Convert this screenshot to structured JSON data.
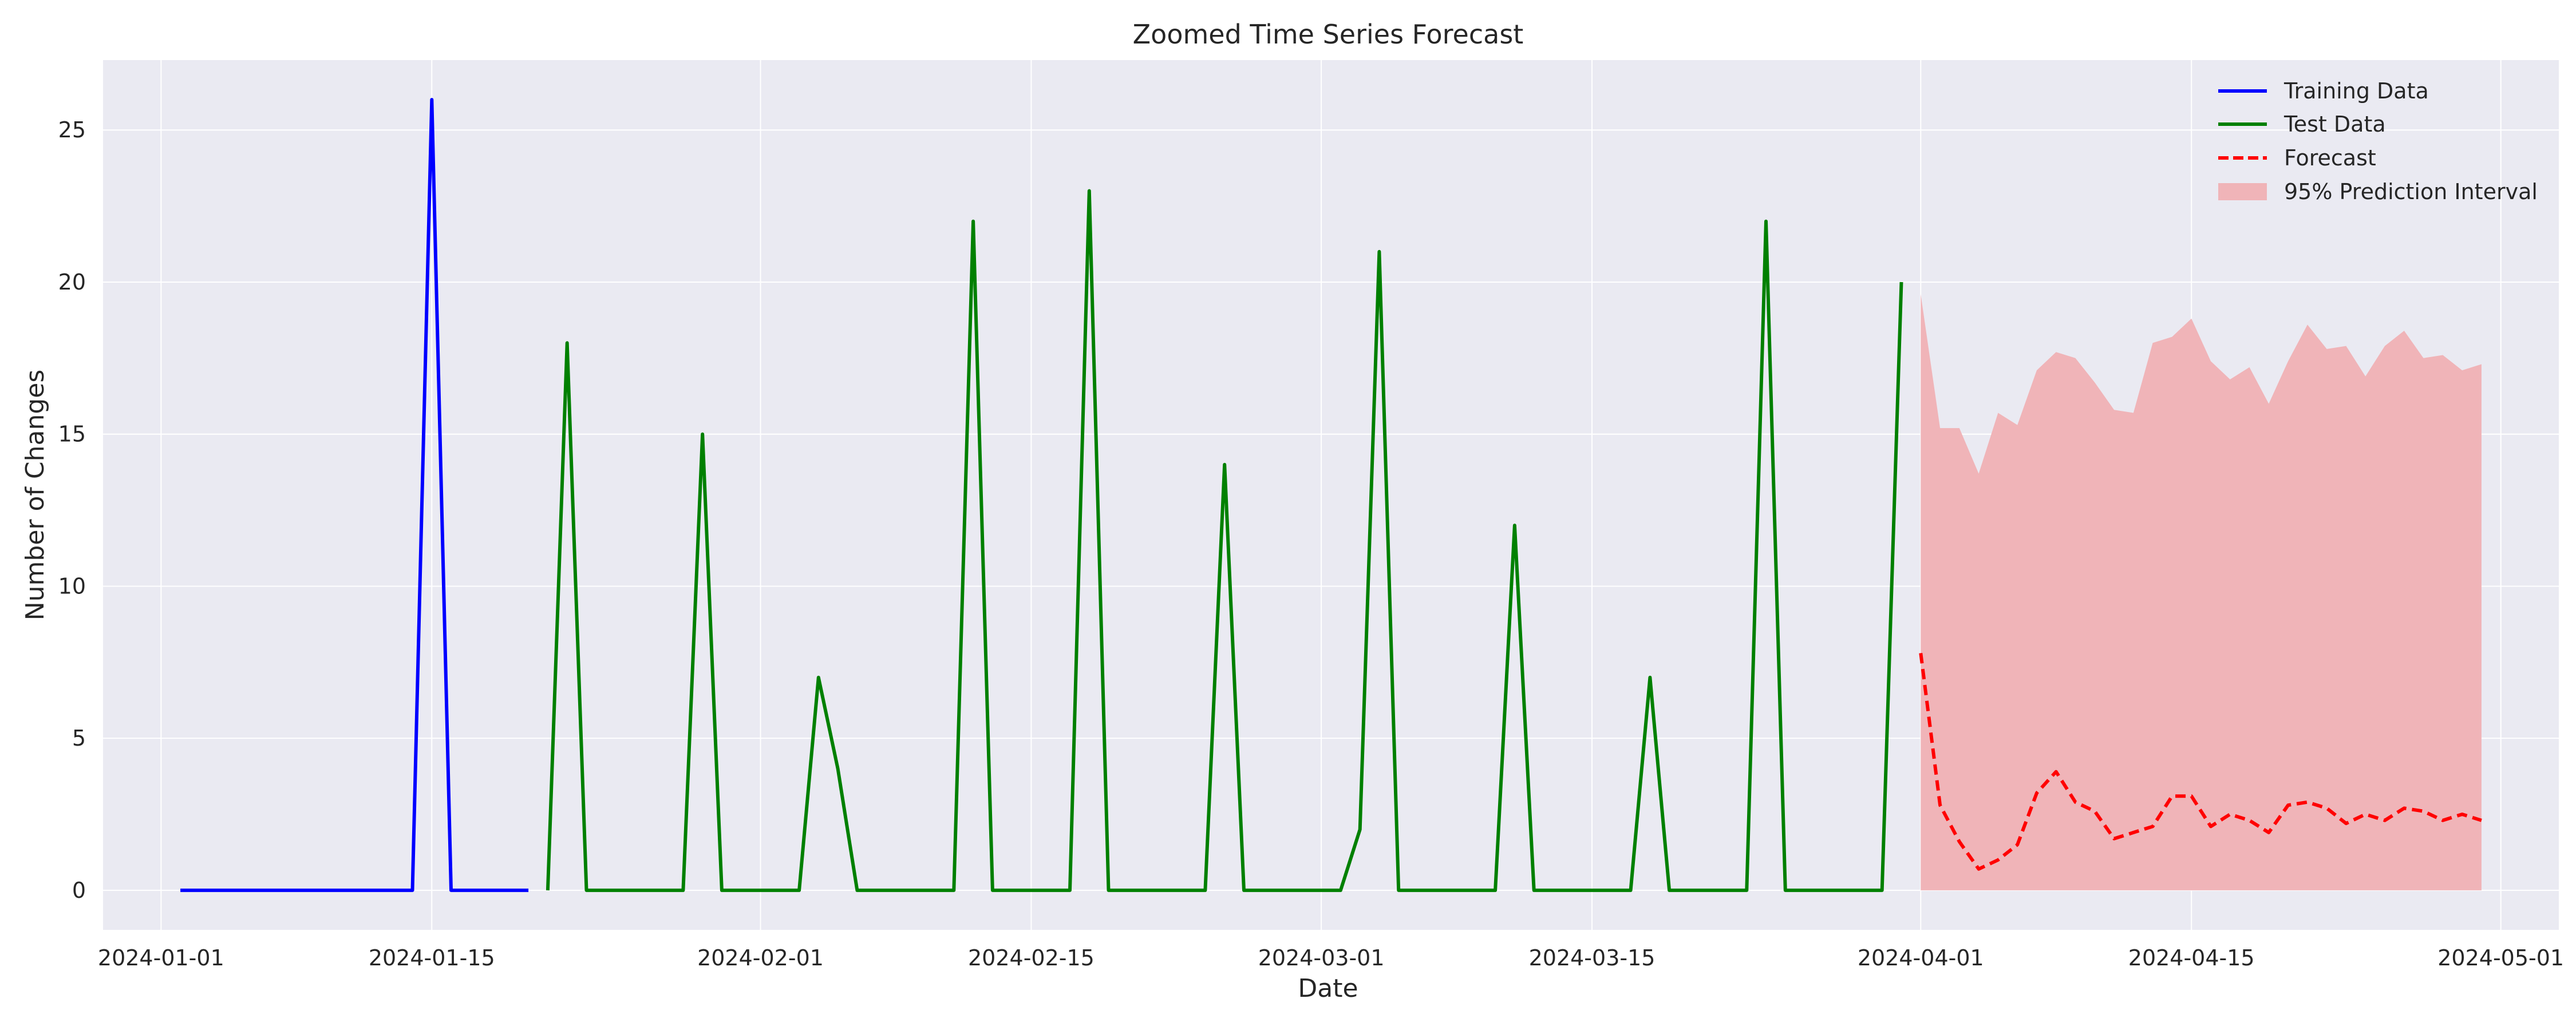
{
  "chart_data": {
    "type": "line",
    "title": "Zoomed Time Series Forecast",
    "xlabel": "Date",
    "ylabel": "Number of Changes",
    "xlim": [
      "2023-12-29",
      "2024-05-04"
    ],
    "ylim": [
      -1.3,
      27.3
    ],
    "x_ticks": [
      "2024-01-01",
      "2024-01-15",
      "2024-02-01",
      "2024-02-15",
      "2024-03-01",
      "2024-03-15",
      "2024-04-01",
      "2024-04-15",
      "2024-05-01"
    ],
    "y_ticks": [
      0,
      5,
      10,
      15,
      20,
      25
    ],
    "grid": true,
    "legend_position": "top-right",
    "colors": {
      "background": "#eaeaf2",
      "grid": "#ffffff",
      "training": "#0000ff",
      "test": "#008000",
      "forecast": "#ff0000",
      "interval": "#f0b4b8"
    },
    "legend": [
      {
        "label": "Training Data",
        "style": "line",
        "color": "#0000ff"
      },
      {
        "label": "Test Data",
        "style": "line",
        "color": "#008000"
      },
      {
        "label": "Forecast",
        "style": "dashed",
        "color": "#ff0000"
      },
      {
        "label": "95% Prediction Interval",
        "style": "patch",
        "color": "#f0b4b8"
      }
    ],
    "series": [
      {
        "name": "Training Data",
        "style": "solid",
        "color": "#0000ff",
        "points": [
          [
            "2024-01-02",
            0
          ],
          [
            "2024-01-03",
            0
          ],
          [
            "2024-01-04",
            0
          ],
          [
            "2024-01-05",
            0
          ],
          [
            "2024-01-06",
            0
          ],
          [
            "2024-01-07",
            0
          ],
          [
            "2024-01-08",
            0
          ],
          [
            "2024-01-09",
            0
          ],
          [
            "2024-01-10",
            0
          ],
          [
            "2024-01-11",
            0
          ],
          [
            "2024-01-12",
            0
          ],
          [
            "2024-01-13",
            0
          ],
          [
            "2024-01-14",
            0
          ],
          [
            "2024-01-15",
            26
          ],
          [
            "2024-01-16",
            0
          ],
          [
            "2024-01-17",
            0
          ],
          [
            "2024-01-18",
            0
          ],
          [
            "2024-01-19",
            0
          ],
          [
            "2024-01-20",
            0
          ]
        ]
      },
      {
        "name": "Test Data",
        "style": "solid",
        "color": "#008000",
        "points": [
          [
            "2024-01-21",
            0
          ],
          [
            "2024-01-22",
            18
          ],
          [
            "2024-01-23",
            0
          ],
          [
            "2024-01-24",
            0
          ],
          [
            "2024-01-25",
            0
          ],
          [
            "2024-01-26",
            0
          ],
          [
            "2024-01-27",
            0
          ],
          [
            "2024-01-28",
            0
          ],
          [
            "2024-01-29",
            15
          ],
          [
            "2024-01-30",
            0
          ],
          [
            "2024-01-31",
            0
          ],
          [
            "2024-02-01",
            0
          ],
          [
            "2024-02-02",
            0
          ],
          [
            "2024-02-03",
            0
          ],
          [
            "2024-02-04",
            7
          ],
          [
            "2024-02-05",
            4
          ],
          [
            "2024-02-06",
            0
          ],
          [
            "2024-02-07",
            0
          ],
          [
            "2024-02-08",
            0
          ],
          [
            "2024-02-09",
            0
          ],
          [
            "2024-02-10",
            0
          ],
          [
            "2024-02-11",
            0
          ],
          [
            "2024-02-12",
            22
          ],
          [
            "2024-02-13",
            0
          ],
          [
            "2024-02-14",
            0
          ],
          [
            "2024-02-15",
            0
          ],
          [
            "2024-02-16",
            0
          ],
          [
            "2024-02-17",
            0
          ],
          [
            "2024-02-18",
            23
          ],
          [
            "2024-02-19",
            0
          ],
          [
            "2024-02-20",
            0
          ],
          [
            "2024-02-21",
            0
          ],
          [
            "2024-02-22",
            0
          ],
          [
            "2024-02-23",
            0
          ],
          [
            "2024-02-24",
            0
          ],
          [
            "2024-02-25",
            14
          ],
          [
            "2024-02-26",
            0
          ],
          [
            "2024-02-27",
            0
          ],
          [
            "2024-02-28",
            0
          ],
          [
            "2024-02-29",
            0
          ],
          [
            "2024-03-01",
            0
          ],
          [
            "2024-03-02",
            0
          ],
          [
            "2024-03-03",
            2
          ],
          [
            "2024-03-04",
            21
          ],
          [
            "2024-03-05",
            0
          ],
          [
            "2024-03-06",
            0
          ],
          [
            "2024-03-07",
            0
          ],
          [
            "2024-03-08",
            0
          ],
          [
            "2024-03-09",
            0
          ],
          [
            "2024-03-10",
            0
          ],
          [
            "2024-03-11",
            12
          ],
          [
            "2024-03-12",
            0
          ],
          [
            "2024-03-13",
            0
          ],
          [
            "2024-03-14",
            0
          ],
          [
            "2024-03-15",
            0
          ],
          [
            "2024-03-16",
            0
          ],
          [
            "2024-03-17",
            0
          ],
          [
            "2024-03-18",
            7
          ],
          [
            "2024-03-19",
            0
          ],
          [
            "2024-03-20",
            0
          ],
          [
            "2024-03-21",
            0
          ],
          [
            "2024-03-22",
            0
          ],
          [
            "2024-03-23",
            0
          ],
          [
            "2024-03-24",
            22
          ],
          [
            "2024-03-25",
            0
          ],
          [
            "2024-03-26",
            0
          ],
          [
            "2024-03-27",
            0
          ],
          [
            "2024-03-28",
            0
          ],
          [
            "2024-03-29",
            0
          ],
          [
            "2024-03-30",
            0
          ],
          [
            "2024-03-31",
            20
          ]
        ]
      },
      {
        "name": "Forecast",
        "style": "dashed",
        "color": "#ff0000",
        "points": [
          [
            "2024-04-01",
            7.8
          ],
          [
            "2024-04-02",
            2.8
          ],
          [
            "2024-04-03",
            1.6
          ],
          [
            "2024-04-04",
            0.7
          ],
          [
            "2024-04-05",
            1.0
          ],
          [
            "2024-04-06",
            1.5
          ],
          [
            "2024-04-07",
            3.2
          ],
          [
            "2024-04-08",
            3.9
          ],
          [
            "2024-04-09",
            2.9
          ],
          [
            "2024-04-10",
            2.6
          ],
          [
            "2024-04-11",
            1.7
          ],
          [
            "2024-04-12",
            1.9
          ],
          [
            "2024-04-13",
            2.1
          ],
          [
            "2024-04-14",
            3.1
          ],
          [
            "2024-04-15",
            3.1
          ],
          [
            "2024-04-16",
            2.1
          ],
          [
            "2024-04-17",
            2.5
          ],
          [
            "2024-04-18",
            2.3
          ],
          [
            "2024-04-19",
            1.9
          ],
          [
            "2024-04-20",
            2.8
          ],
          [
            "2024-04-21",
            2.9
          ],
          [
            "2024-04-22",
            2.7
          ],
          [
            "2024-04-23",
            2.2
          ],
          [
            "2024-04-24",
            2.5
          ],
          [
            "2024-04-25",
            2.3
          ],
          [
            "2024-04-26",
            2.7
          ],
          [
            "2024-04-27",
            2.6
          ],
          [
            "2024-04-28",
            2.3
          ],
          [
            "2024-04-29",
            2.5
          ],
          [
            "2024-04-30",
            2.3
          ]
        ]
      }
    ],
    "interval": {
      "name": "95% Prediction Interval",
      "x": [
        "2024-04-01",
        "2024-04-02",
        "2024-04-03",
        "2024-04-04",
        "2024-04-05",
        "2024-04-06",
        "2024-04-07",
        "2024-04-08",
        "2024-04-09",
        "2024-04-10",
        "2024-04-11",
        "2024-04-12",
        "2024-04-13",
        "2024-04-14",
        "2024-04-15",
        "2024-04-16",
        "2024-04-17",
        "2024-04-18",
        "2024-04-19",
        "2024-04-20",
        "2024-04-21",
        "2024-04-22",
        "2024-04-23",
        "2024-04-24",
        "2024-04-25",
        "2024-04-26",
        "2024-04-27",
        "2024-04-28",
        "2024-04-29",
        "2024-04-30"
      ],
      "lower": [
        0,
        0,
        0,
        0,
        0,
        0,
        0,
        0,
        0,
        0,
        0,
        0,
        0,
        0,
        0,
        0,
        0,
        0,
        0,
        0,
        0,
        0,
        0,
        0,
        0,
        0,
        0,
        0,
        0,
        0
      ],
      "upper": [
        19.6,
        15.2,
        15.2,
        13.7,
        15.7,
        15.3,
        17.1,
        17.7,
        17.5,
        16.7,
        15.8,
        15.7,
        18.0,
        18.2,
        18.8,
        17.4,
        16.8,
        17.2,
        16.0,
        17.4,
        18.6,
        17.8,
        17.9,
        16.9,
        17.9,
        18.4,
        17.5,
        17.6,
        17.1,
        17.3
      ]
    }
  }
}
